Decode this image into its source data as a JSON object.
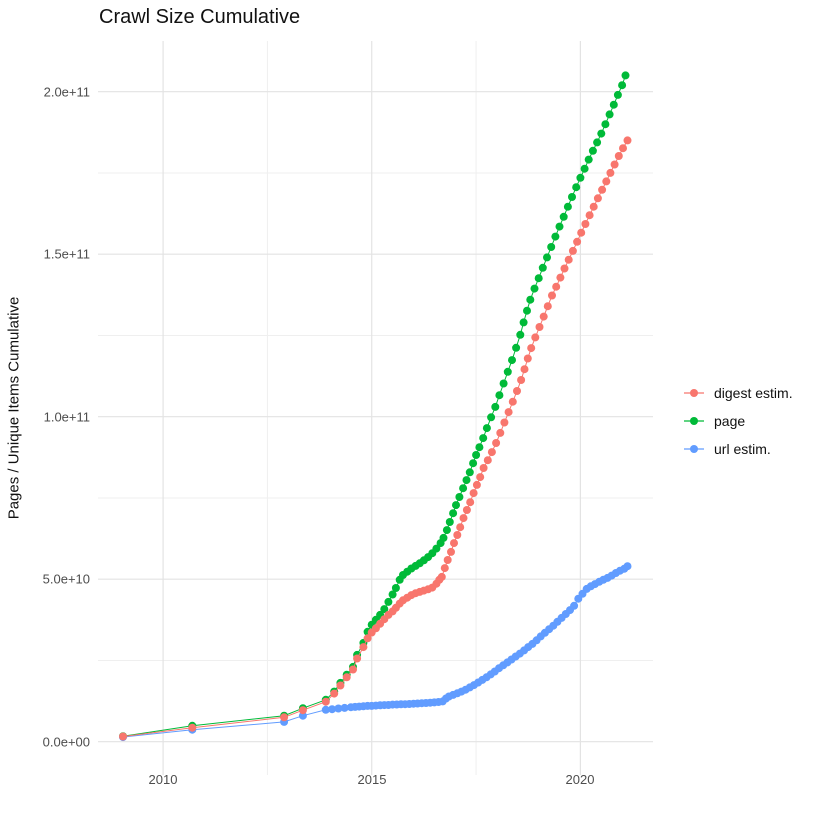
{
  "title": "Crawl Size Cumulative",
  "axes": {
    "y_label": "Pages / Unique Items Cumulative",
    "y_ticks": [
      "0.0e+00",
      "5.0e+10",
      "1.0e+11",
      "1.5e+11",
      "2.0e+11"
    ],
    "x_ticks": [
      "2010",
      "2015",
      "2020"
    ]
  },
  "legend": {
    "items": [
      {
        "label": "digest estim.",
        "color": "#F8766D"
      },
      {
        "label": "page",
        "color": "#00BA38"
      },
      {
        "label": "url estim.",
        "color": "#619CFF"
      }
    ]
  },
  "colors": {
    "digest": "#F8766D",
    "page": "#00BA38",
    "url": "#619CFF",
    "grid_major": "#e3e3e3",
    "grid_minor": "#efefef",
    "tick_text": "#4d4d4d",
    "background": "#ffffff"
  },
  "chart_data": {
    "type": "scatter",
    "title": "Crawl Size Cumulative",
    "xlabel": "",
    "ylabel": "Pages / Unique Items Cumulative",
    "legend_position": "right",
    "grid": true,
    "xlim": [
      2008.44,
      2021.74
    ],
    "ylim": [
      -10250000000.0,
      215600000000.0
    ],
    "x_major_gridlines": [
      2010,
      2015,
      2020
    ],
    "x_minor_gridlines": [
      2012.5,
      2017.5
    ],
    "y_major_gridlines": [
      0,
      50000000000.0,
      100000000000.0,
      150000000000.0,
      200000000000.0
    ],
    "y_minor_gridlines": [
      25000000000.0,
      75000000000.0,
      125000000000.0,
      175000000000.0
    ],
    "value_scale": 1000000000.0,
    "value_unit": "pages (billions)",
    "series": [
      {
        "name": "digest estim.",
        "color": "#F8766D",
        "points": [
          [
            2009.04,
            1.6
          ],
          [
            2010.7,
            4.3
          ],
          [
            2012.9,
            7.5
          ],
          [
            2013.35,
            9.7
          ],
          [
            2013.9,
            12.3
          ],
          [
            2014.1,
            14.8
          ],
          [
            2014.25,
            17.3
          ],
          [
            2014.4,
            19.8
          ],
          [
            2014.55,
            22.2
          ],
          [
            2014.65,
            25.6
          ],
          [
            2014.8,
            29.1
          ],
          [
            2014.9,
            31.8
          ],
          [
            2015.0,
            33.6
          ],
          [
            2015.1,
            34.9
          ],
          [
            2015.2,
            36.3
          ],
          [
            2015.3,
            37.7
          ],
          [
            2015.4,
            39.0
          ],
          [
            2015.5,
            40.1
          ],
          [
            2015.58,
            41.2
          ],
          [
            2015.67,
            42.5
          ],
          [
            2015.75,
            43.5
          ],
          [
            2015.85,
            44.3
          ],
          [
            2015.95,
            45.1
          ],
          [
            2016.05,
            45.7
          ],
          [
            2016.15,
            46.1
          ],
          [
            2016.25,
            46.5
          ],
          [
            2016.35,
            46.9
          ],
          [
            2016.45,
            47.4
          ],
          [
            2016.55,
            48.6
          ],
          [
            2016.62,
            49.8
          ],
          [
            2016.68,
            50.7
          ],
          [
            2016.75,
            53.4
          ],
          [
            2016.82,
            55.9
          ],
          [
            2016.9,
            58.4
          ],
          [
            2016.97,
            61.1
          ],
          [
            2017.05,
            63.6
          ],
          [
            2017.12,
            66.0
          ],
          [
            2017.2,
            68.8
          ],
          [
            2017.28,
            71.3
          ],
          [
            2017.36,
            73.7
          ],
          [
            2017.44,
            76.5
          ],
          [
            2017.52,
            79.0
          ],
          [
            2017.6,
            81.4
          ],
          [
            2017.68,
            84.2
          ],
          [
            2017.78,
            86.6
          ],
          [
            2017.88,
            89.1
          ],
          [
            2017.98,
            91.9
          ],
          [
            2018.08,
            95.0
          ],
          [
            2018.18,
            98.2
          ],
          [
            2018.28,
            101.4
          ],
          [
            2018.38,
            104.6
          ],
          [
            2018.48,
            107.9
          ],
          [
            2018.58,
            111.3
          ],
          [
            2018.66,
            114.6
          ],
          [
            2018.74,
            117.9
          ],
          [
            2018.82,
            121.1
          ],
          [
            2018.92,
            124.4
          ],
          [
            2019.02,
            127.6
          ],
          [
            2019.12,
            130.8
          ],
          [
            2019.22,
            134.0
          ],
          [
            2019.32,
            137.3
          ],
          [
            2019.42,
            140.0
          ],
          [
            2019.52,
            142.8
          ],
          [
            2019.62,
            145.6
          ],
          [
            2019.72,
            148.3
          ],
          [
            2019.82,
            151.0
          ],
          [
            2019.92,
            153.8
          ],
          [
            2020.02,
            156.6
          ],
          [
            2020.12,
            159.3
          ],
          [
            2020.22,
            162.0
          ],
          [
            2020.32,
            164.6
          ],
          [
            2020.42,
            167.2
          ],
          [
            2020.52,
            169.8
          ],
          [
            2020.62,
            172.4
          ],
          [
            2020.72,
            175.0
          ],
          [
            2020.82,
            177.6
          ],
          [
            2020.92,
            180.2
          ],
          [
            2021.02,
            182.6
          ],
          [
            2021.13,
            185.0
          ]
        ]
      },
      {
        "name": "page",
        "color": "#00BA38",
        "points": [
          [
            2009.04,
            1.7
          ],
          [
            2010.7,
            4.9
          ],
          [
            2012.9,
            8.0
          ],
          [
            2013.35,
            10.3
          ],
          [
            2013.9,
            12.9
          ],
          [
            2014.1,
            15.4
          ],
          [
            2014.25,
            18.1
          ],
          [
            2014.4,
            20.6
          ],
          [
            2014.55,
            23.0
          ],
          [
            2014.65,
            26.7
          ],
          [
            2014.8,
            30.4
          ],
          [
            2014.9,
            33.8
          ],
          [
            2015.0,
            36.0
          ],
          [
            2015.1,
            37.5
          ],
          [
            2015.2,
            39.0
          ],
          [
            2015.3,
            40.8
          ],
          [
            2015.4,
            43.0
          ],
          [
            2015.5,
            45.3
          ],
          [
            2015.58,
            47.3
          ],
          [
            2015.67,
            49.8
          ],
          [
            2015.75,
            51.3
          ],
          [
            2015.85,
            52.3
          ],
          [
            2015.95,
            53.3
          ],
          [
            2016.05,
            54.1
          ],
          [
            2016.15,
            54.9
          ],
          [
            2016.25,
            55.8
          ],
          [
            2016.35,
            56.8
          ],
          [
            2016.45,
            58.0
          ],
          [
            2016.55,
            59.4
          ],
          [
            2016.65,
            61.1
          ],
          [
            2016.72,
            62.7
          ],
          [
            2016.8,
            65.1
          ],
          [
            2016.87,
            67.6
          ],
          [
            2016.95,
            70.3
          ],
          [
            2017.02,
            72.8
          ],
          [
            2017.1,
            75.3
          ],
          [
            2017.19,
            78.0
          ],
          [
            2017.27,
            80.5
          ],
          [
            2017.35,
            82.9
          ],
          [
            2017.43,
            85.7
          ],
          [
            2017.5,
            88.2
          ],
          [
            2017.58,
            90.6
          ],
          [
            2017.67,
            93.4
          ],
          [
            2017.76,
            96.5
          ],
          [
            2017.86,
            99.8
          ],
          [
            2017.96,
            103.0
          ],
          [
            2018.06,
            106.6
          ],
          [
            2018.16,
            110.2
          ],
          [
            2018.26,
            113.8
          ],
          [
            2018.36,
            117.4
          ],
          [
            2018.46,
            121.2
          ],
          [
            2018.56,
            125.2
          ],
          [
            2018.64,
            129.0
          ],
          [
            2018.72,
            132.6
          ],
          [
            2018.8,
            136.0
          ],
          [
            2018.9,
            139.4
          ],
          [
            2019.0,
            142.6
          ],
          [
            2019.1,
            145.8
          ],
          [
            2019.2,
            149.0
          ],
          [
            2019.3,
            152.2
          ],
          [
            2019.4,
            155.4
          ],
          [
            2019.5,
            158.5
          ],
          [
            2019.6,
            161.5
          ],
          [
            2019.7,
            164.6
          ],
          [
            2019.8,
            167.6
          ],
          [
            2019.9,
            170.6
          ],
          [
            2020.0,
            173.5
          ],
          [
            2020.1,
            176.3
          ],
          [
            2020.2,
            179.1
          ],
          [
            2020.3,
            181.8
          ],
          [
            2020.4,
            184.4
          ],
          [
            2020.5,
            187.1
          ],
          [
            2020.6,
            190.0
          ],
          [
            2020.7,
            193.0
          ],
          [
            2020.8,
            196.0
          ],
          [
            2020.9,
            199.0
          ],
          [
            2021.0,
            202.0
          ],
          [
            2021.08,
            205.0
          ]
        ]
      },
      {
        "name": "url estim.",
        "color": "#619CFF",
        "points": [
          [
            2009.04,
            1.4
          ],
          [
            2010.7,
            3.7
          ],
          [
            2012.9,
            6.1
          ],
          [
            2013.35,
            8.0
          ],
          [
            2013.9,
            9.8
          ],
          [
            2014.05,
            10.0
          ],
          [
            2014.2,
            10.2
          ],
          [
            2014.35,
            10.4
          ],
          [
            2014.5,
            10.6
          ],
          [
            2014.6,
            10.7
          ],
          [
            2014.7,
            10.8
          ],
          [
            2014.8,
            10.9
          ],
          [
            2014.9,
            11.0
          ],
          [
            2015.0,
            11.0
          ],
          [
            2015.1,
            11.1
          ],
          [
            2015.2,
            11.2
          ],
          [
            2015.3,
            11.25
          ],
          [
            2015.4,
            11.3
          ],
          [
            2015.5,
            11.4
          ],
          [
            2015.6,
            11.45
          ],
          [
            2015.7,
            11.5
          ],
          [
            2015.8,
            11.55
          ],
          [
            2015.9,
            11.6
          ],
          [
            2016.0,
            11.7
          ],
          [
            2016.1,
            11.75
          ],
          [
            2016.2,
            11.85
          ],
          [
            2016.3,
            11.9
          ],
          [
            2016.4,
            12.0
          ],
          [
            2016.5,
            12.1
          ],
          [
            2016.6,
            12.2
          ],
          [
            2016.7,
            12.4
          ],
          [
            2016.78,
            13.3
          ],
          [
            2016.85,
            13.9
          ],
          [
            2016.95,
            14.4
          ],
          [
            2017.05,
            14.9
          ],
          [
            2017.15,
            15.4
          ],
          [
            2017.25,
            16.0
          ],
          [
            2017.35,
            16.7
          ],
          [
            2017.45,
            17.4
          ],
          [
            2017.55,
            18.2
          ],
          [
            2017.65,
            19.0
          ],
          [
            2017.75,
            19.8
          ],
          [
            2017.85,
            20.7
          ],
          [
            2017.95,
            21.6
          ],
          [
            2018.05,
            22.6
          ],
          [
            2018.15,
            23.5
          ],
          [
            2018.25,
            24.4
          ],
          [
            2018.35,
            25.3
          ],
          [
            2018.45,
            26.2
          ],
          [
            2018.55,
            27.1
          ],
          [
            2018.65,
            28.1
          ],
          [
            2018.75,
            29.1
          ],
          [
            2018.85,
            30.1
          ],
          [
            2018.95,
            31.2
          ],
          [
            2019.05,
            32.4
          ],
          [
            2019.15,
            33.5
          ],
          [
            2019.25,
            34.6
          ],
          [
            2019.35,
            35.7
          ],
          [
            2019.45,
            36.9
          ],
          [
            2019.55,
            38.1
          ],
          [
            2019.65,
            39.3
          ],
          [
            2019.75,
            40.5
          ],
          [
            2019.85,
            41.8
          ],
          [
            2019.95,
            44.0
          ],
          [
            2020.05,
            45.5
          ],
          [
            2020.15,
            47.0
          ],
          [
            2020.25,
            47.8
          ],
          [
            2020.35,
            48.5
          ],
          [
            2020.45,
            49.2
          ],
          [
            2020.55,
            49.8
          ],
          [
            2020.65,
            50.4
          ],
          [
            2020.75,
            51.1
          ],
          [
            2020.85,
            51.9
          ],
          [
            2020.95,
            52.6
          ],
          [
            2021.05,
            53.2
          ],
          [
            2021.13,
            54.0
          ]
        ]
      }
    ]
  }
}
